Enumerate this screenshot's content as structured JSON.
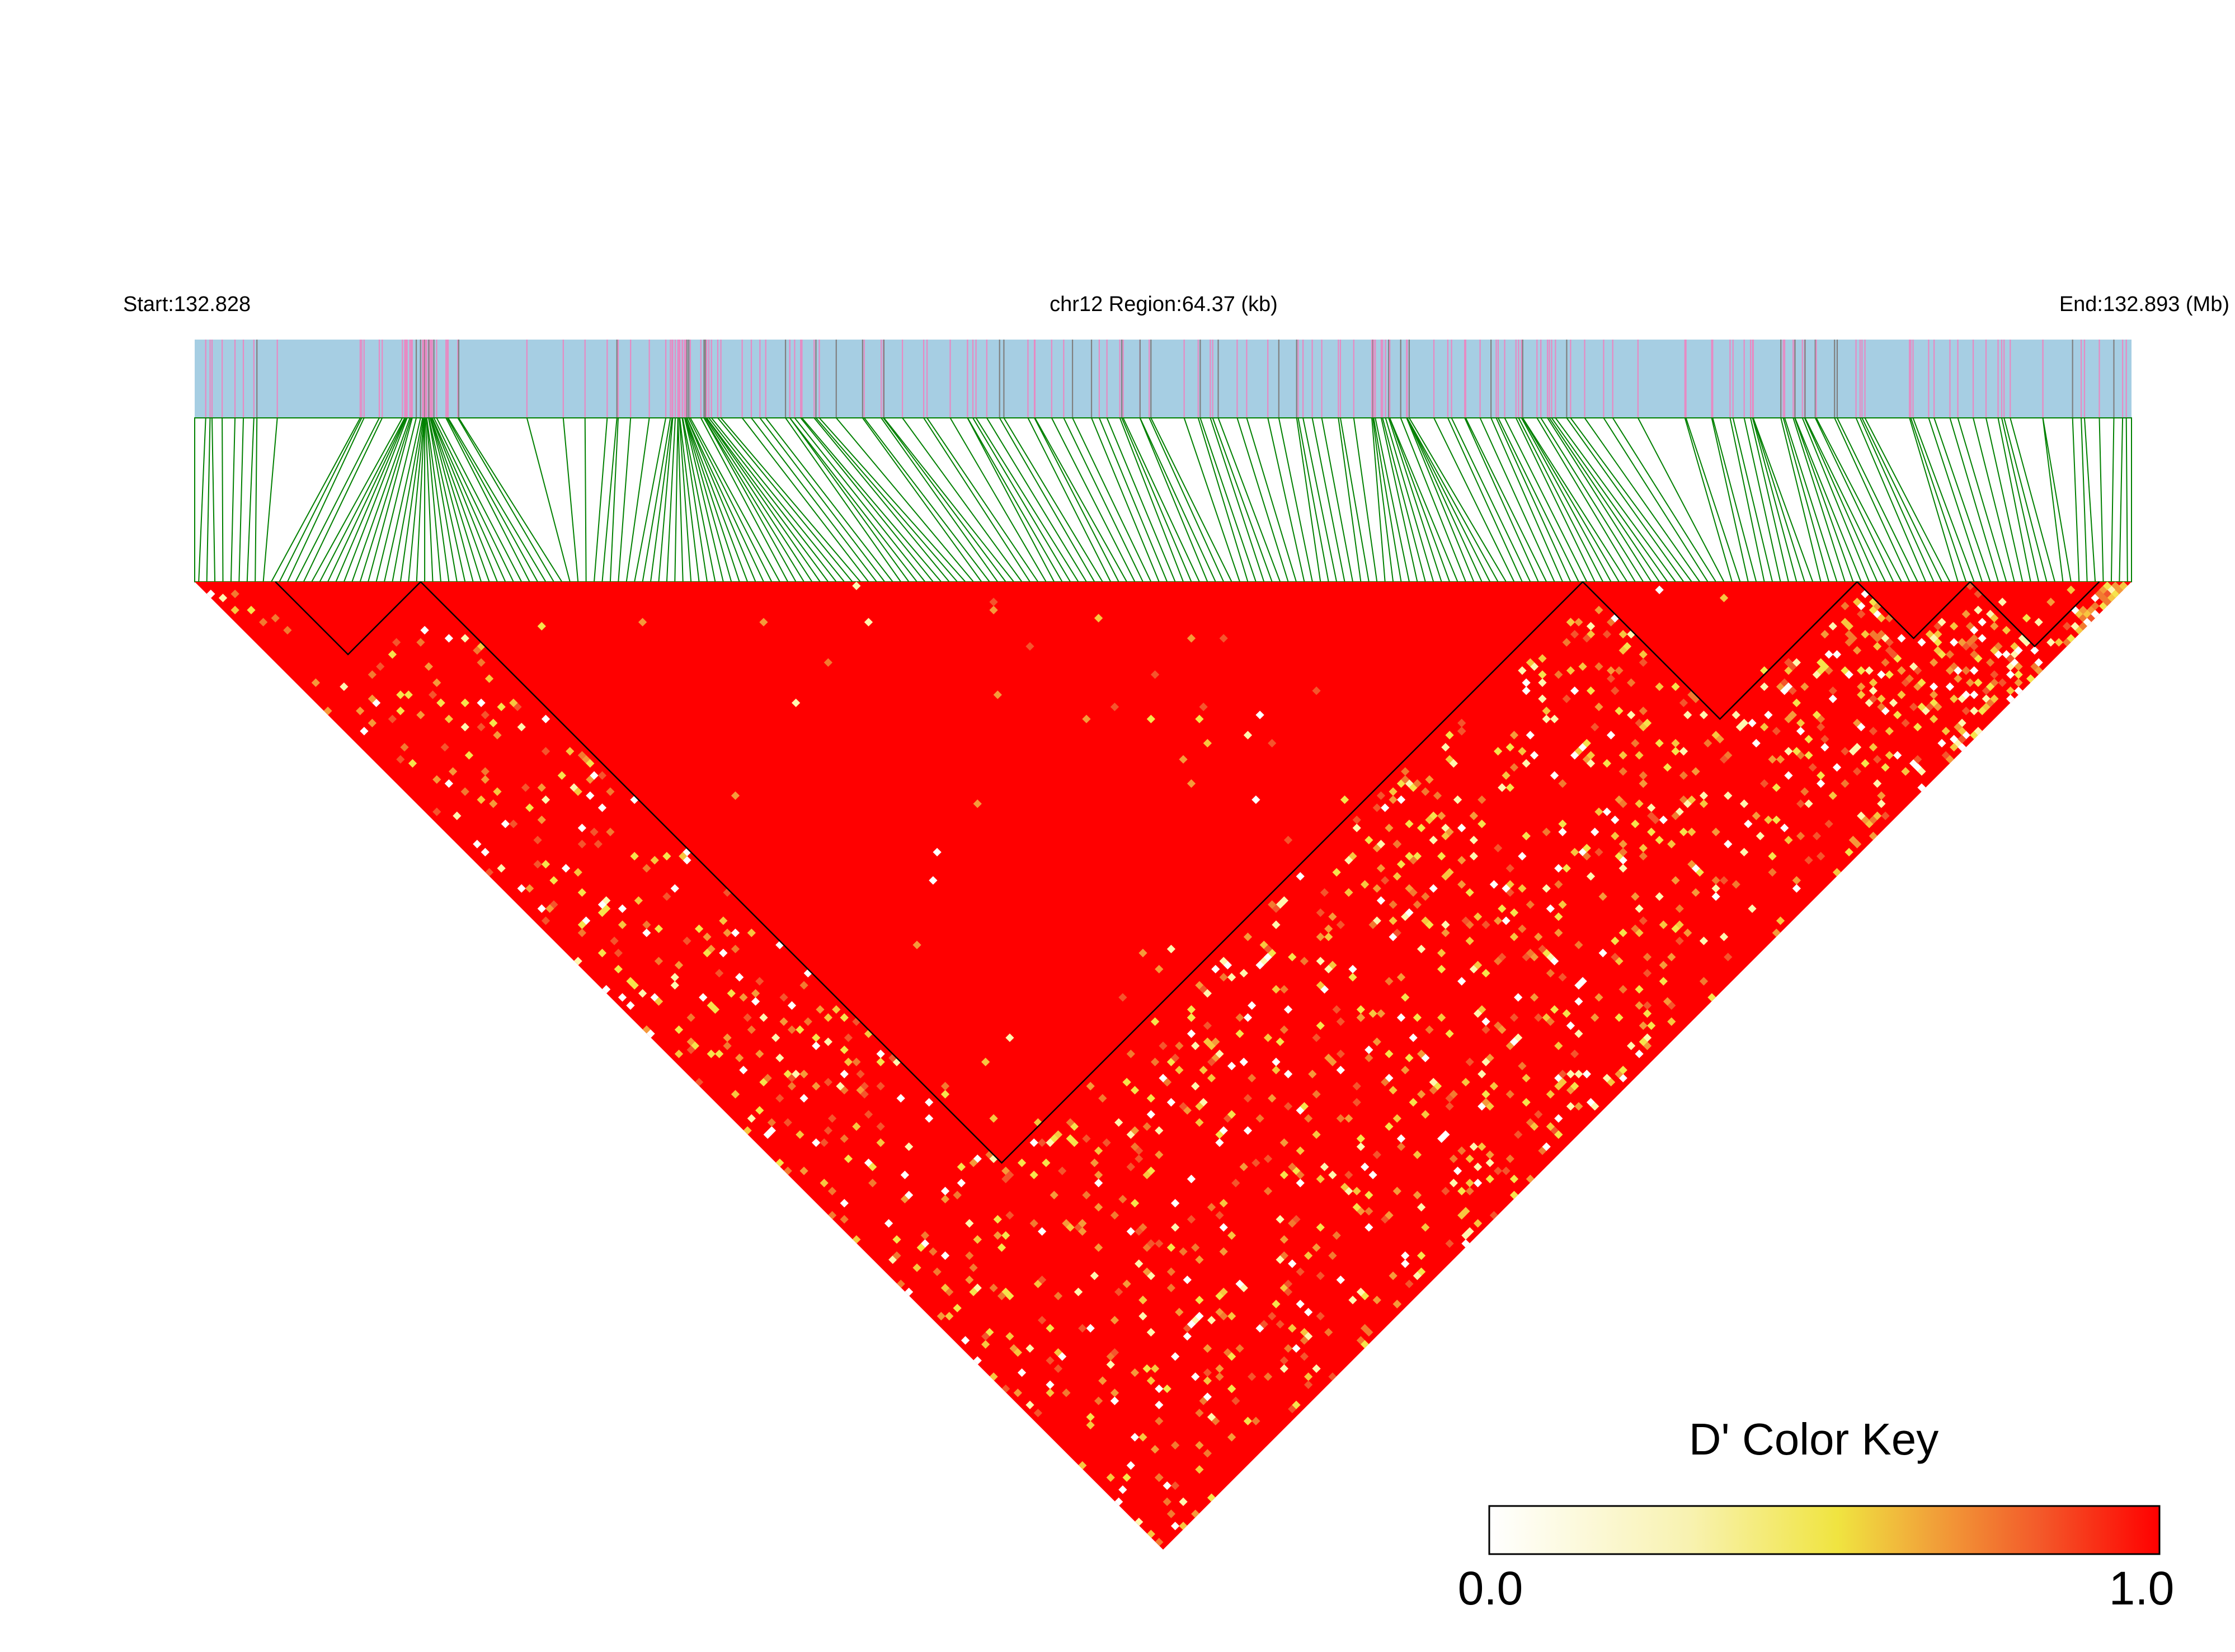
{
  "header": {
    "start_label": "Start:132.828",
    "region_label": "chr12 Region:64.37 (kb)",
    "end_label": "End:132.893 (Mb)"
  },
  "colors": {
    "track_bg": "#a6cee3",
    "snp_mark_pink": "#e78ac3",
    "snp_mark_gray": "#808080",
    "connector": "#008000",
    "block_outline": "#000000",
    "key_low": "#ffffff",
    "key_mid": "#f2e544",
    "key_high": "#ff0000"
  },
  "legend": {
    "title": "D' Color Key",
    "min_label": "0.0",
    "max_label": "1.0",
    "range": [
      0.0,
      1.0
    ]
  },
  "chart_data": {
    "type": "heatmap",
    "chromosome": "chr12",
    "start_mb": 132.828,
    "end_mb": 132.893,
    "region_kb": 64.37,
    "n_snps": 240,
    "metric": "D'",
    "value_range": [
      0,
      1
    ],
    "dominant_value": "high (near 1.0, red)",
    "ld_blocks_snp_index": [
      [
        10,
        28
      ],
      [
        28,
        172
      ],
      [
        172,
        206
      ],
      [
        206,
        220
      ],
      [
        220,
        236
      ]
    ]
  }
}
